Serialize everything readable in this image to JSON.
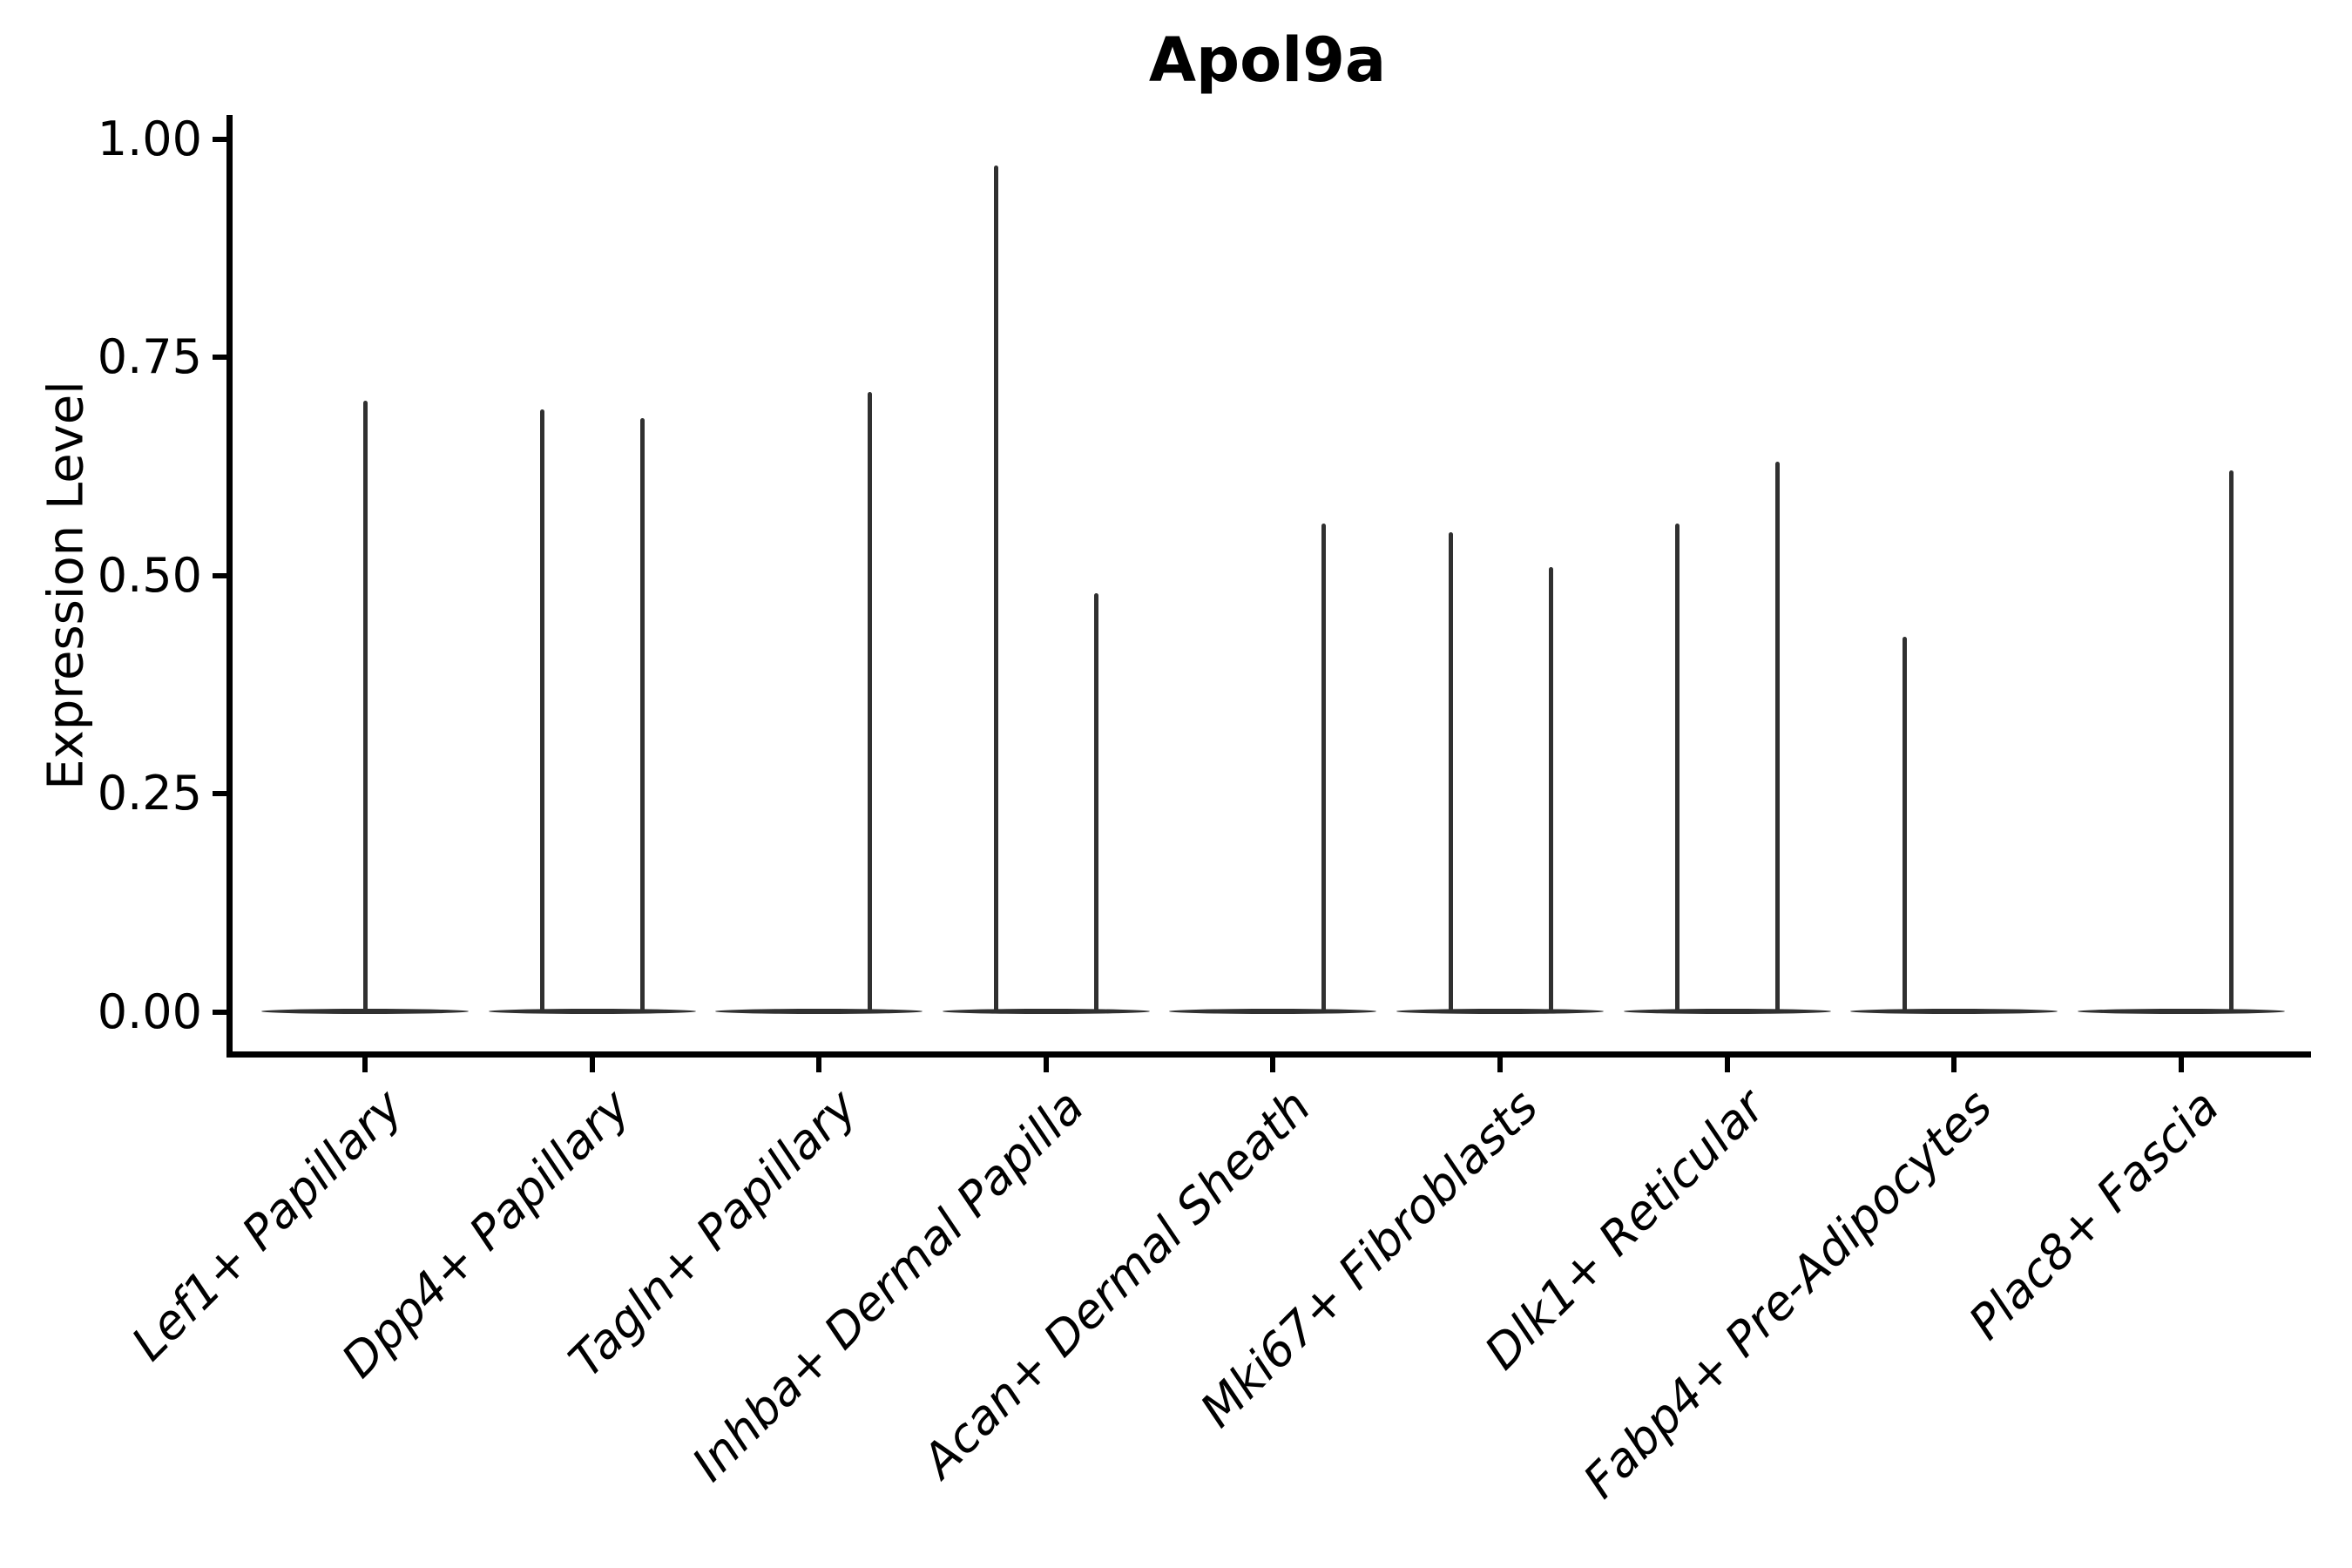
{
  "chart_data": {
    "type": "violin",
    "title": "Apol9a",
    "ylabel": "Expression Level",
    "xlabel": "",
    "ylim": [
      0,
      1.0
    ],
    "grid": false,
    "legend_position": "none",
    "yticks": [
      {
        "label": "0.00",
        "value": 0.0
      },
      {
        "label": "0.25",
        "value": 0.25
      },
      {
        "label": "0.50",
        "value": 0.5
      },
      {
        "label": "0.75",
        "value": 0.75
      },
      {
        "label": "1.00",
        "value": 1.0
      }
    ],
    "categories": [
      "Lef1+ Papillary",
      "Dpp4+ Papillary",
      "Tagln+ Papillary",
      "Inhba+ Dermal Papilla",
      "Acan+ Dermal Sheath",
      "Mki67+ Fibroblasts",
      "Dlk1+ Reticular",
      "Fabp4+ Pre-Adipocytes",
      "Plac8+ Fascia"
    ],
    "violins": [
      {
        "category": "Lef1+ Papillary",
        "baseline_value": 0,
        "spikes": [
          {
            "slot": "center",
            "max": 0.7
          }
        ]
      },
      {
        "category": "Dpp4+ Papillary",
        "baseline_value": 0,
        "spikes": [
          {
            "slot": "left",
            "max": 0.69
          },
          {
            "slot": "right",
            "max": 0.68
          }
        ]
      },
      {
        "category": "Tagln+ Papillary",
        "baseline_value": 0,
        "spikes": [
          {
            "slot": "right",
            "max": 0.71
          }
        ]
      },
      {
        "category": "Inhba+ Dermal Papilla",
        "baseline_value": 0,
        "spikes": [
          {
            "slot": "left",
            "max": 0.97
          },
          {
            "slot": "right",
            "max": 0.48
          }
        ]
      },
      {
        "category": "Acan+ Dermal Sheath",
        "baseline_value": 0,
        "spikes": [
          {
            "slot": "right",
            "max": 0.56
          }
        ]
      },
      {
        "category": "Mki67+ Fibroblasts",
        "baseline_value": 0,
        "spikes": [
          {
            "slot": "left",
            "max": 0.55
          },
          {
            "slot": "right",
            "max": 0.51
          }
        ]
      },
      {
        "category": "Dlk1+ Reticular",
        "baseline_value": 0,
        "spikes": [
          {
            "slot": "left",
            "max": 0.56
          },
          {
            "slot": "right",
            "max": 0.63
          }
        ]
      },
      {
        "category": "Fabp4+ Pre-Adipocytes",
        "baseline_value": 0,
        "spikes": [
          {
            "slot": "left",
            "max": 0.43
          }
        ]
      },
      {
        "category": "Plac8+ Fascia",
        "baseline_value": 0,
        "spikes": [
          {
            "slot": "right",
            "max": 0.62
          }
        ]
      }
    ],
    "colors": {
      "violin": "#303030",
      "axis": "#000000",
      "text": "#000000",
      "background": "#ffffff"
    }
  }
}
